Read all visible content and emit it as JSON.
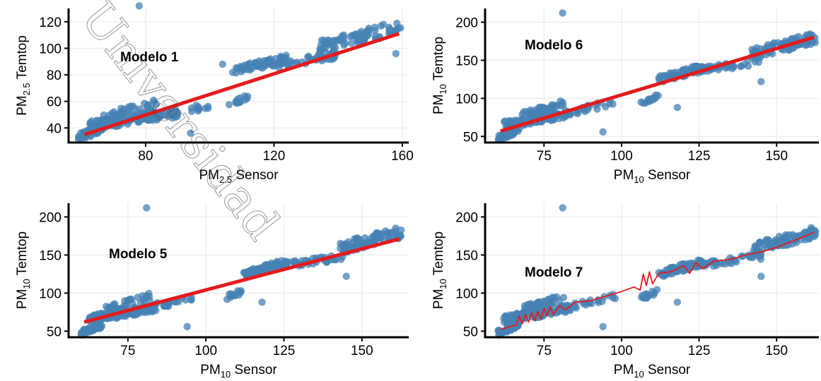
{
  "colors": {
    "points": "#4682B4",
    "fit": "#E41A1C",
    "grid": "#EBEBEB",
    "axis": "#000000"
  },
  "watermark": "Universidad",
  "chart_data": [
    {
      "type": "scatter",
      "panel": "Modelo 1",
      "fit": "linear",
      "xlabel": {
        "base": "PM",
        "sub": "2.5",
        "rest": " Sensor"
      },
      "ylabel": {
        "base": "PM",
        "sub": "2.5",
        "rest": " Temtop"
      },
      "xlim": [
        56,
        162
      ],
      "ylim": [
        29,
        130
      ],
      "xticks": [
        80,
        120,
        160
      ],
      "yticks": [
        40,
        60,
        80,
        100,
        120
      ],
      "fit_line": [
        [
          61,
          35
        ],
        [
          159,
          111
        ]
      ],
      "clusters": [
        {
          "x": [
            59,
            68
          ],
          "y": [
            29,
            46
          ],
          "n": 60
        },
        {
          "x": [
            62,
            90
          ],
          "y": [
            38,
            55
          ],
          "n": 120
        },
        {
          "x": [
            66,
            84
          ],
          "y": [
            44,
            62
          ],
          "n": 40
        },
        {
          "x": [
            86,
            100
          ],
          "y": [
            46,
            60
          ],
          "n": 18
        },
        {
          "x": [
            106,
            112
          ],
          "y": [
            56,
            66
          ],
          "n": 14
        },
        {
          "x": [
            107,
            124
          ],
          "y": [
            80,
            95
          ],
          "n": 60
        },
        {
          "x": [
            120,
            140
          ],
          "y": [
            84,
            98
          ],
          "n": 40
        },
        {
          "x": [
            134,
            160
          ],
          "y": [
            96,
            122
          ],
          "n": 80
        }
      ],
      "outliers": [
        [
          78,
          132
        ],
        [
          94,
          36
        ],
        [
          104,
          88
        ],
        [
          158,
          96
        ]
      ]
    },
    {
      "type": "scatter",
      "panel": "Modelo 6",
      "fit": "linear",
      "xlabel": {
        "base": "PM",
        "sub": "10",
        "rest": " Sensor"
      },
      "ylabel": {
        "base": "PM",
        "sub": "10",
        "rest": " Temtop"
      },
      "xlim": [
        56,
        165
      ],
      "ylim": [
        42,
        218
      ],
      "xticks": [
        75,
        100,
        125,
        150
      ],
      "yticks": [
        50,
        100,
        150,
        200
      ],
      "fit_line": [
        [
          61,
          57
        ],
        [
          162,
          180
        ]
      ],
      "clusters": [
        {
          "x": [
            60,
            67
          ],
          "y": [
            44,
            62
          ],
          "n": 40
        },
        {
          "x": [
            62,
            84
          ],
          "y": [
            60,
            86
          ],
          "n": 120
        },
        {
          "x": [
            68,
            82
          ],
          "y": [
            72,
            100
          ],
          "n": 40
        },
        {
          "x": [
            84,
            98
          ],
          "y": [
            78,
            100
          ],
          "n": 20
        },
        {
          "x": [
            106,
            112
          ],
          "y": [
            90,
            106
          ],
          "n": 14
        },
        {
          "x": [
            112,
            126
          ],
          "y": [
            120,
            145
          ],
          "n": 60
        },
        {
          "x": [
            124,
            145
          ],
          "y": [
            132,
            152
          ],
          "n": 40
        },
        {
          "x": [
            142,
            163
          ],
          "y": [
            150,
            188
          ],
          "n": 80
        }
      ],
      "outliers": [
        [
          81,
          212
        ],
        [
          94,
          56
        ],
        [
          118,
          88
        ],
        [
          145,
          122
        ]
      ]
    },
    {
      "type": "scatter",
      "panel": "Modelo 5",
      "fit": "linear",
      "xlabel": {
        "base": "PM",
        "sub": "10",
        "rest": " Sensor"
      },
      "ylabel": {
        "base": "PM",
        "sub": "10",
        "rest": " Temtop"
      },
      "xlim": [
        56,
        165
      ],
      "ylim": [
        42,
        218
      ],
      "xticks": [
        75,
        100,
        125,
        150
      ],
      "yticks": [
        50,
        100,
        150,
        200
      ],
      "fit_line": [
        [
          61,
          62
        ],
        [
          162,
          171
        ]
      ],
      "clusters": [
        {
          "x": [
            60,
            67
          ],
          "y": [
            44,
            62
          ],
          "n": 40
        },
        {
          "x": [
            62,
            84
          ],
          "y": [
            60,
            86
          ],
          "n": 120
        },
        {
          "x": [
            68,
            82
          ],
          "y": [
            72,
            100
          ],
          "n": 40
        },
        {
          "x": [
            84,
            98
          ],
          "y": [
            78,
            100
          ],
          "n": 20
        },
        {
          "x": [
            106,
            112
          ],
          "y": [
            90,
            106
          ],
          "n": 14
        },
        {
          "x": [
            112,
            126
          ],
          "y": [
            120,
            145
          ],
          "n": 60
        },
        {
          "x": [
            124,
            145
          ],
          "y": [
            132,
            152
          ],
          "n": 40
        },
        {
          "x": [
            142,
            163
          ],
          "y": [
            150,
            188
          ],
          "n": 80
        }
      ],
      "outliers": [
        [
          81,
          212
        ],
        [
          94,
          56
        ],
        [
          118,
          88
        ],
        [
          145,
          122
        ]
      ]
    },
    {
      "type": "scatter",
      "panel": "Modelo 7",
      "fit": "fitted",
      "xlabel": {
        "base": "PM",
        "sub": "10",
        "rest": " Sensor"
      },
      "ylabel": {
        "base": "PM",
        "sub": "10",
        "rest": " Temtop"
      },
      "xlim": [
        56,
        165
      ],
      "ylim": [
        42,
        218
      ],
      "xticks": [
        75,
        100,
        125,
        150
      ],
      "yticks": [
        50,
        100,
        150,
        200
      ],
      "fit_line": [
        [
          61,
          52
        ],
        [
          64,
          56
        ],
        [
          66,
          58
        ],
        [
          67,
          70
        ],
        [
          68,
          60
        ],
        [
          69,
          72
        ],
        [
          70,
          62
        ],
        [
          71,
          74
        ],
        [
          72,
          64
        ],
        [
          73,
          76
        ],
        [
          74,
          66
        ],
        [
          75,
          80
        ],
        [
          76,
          70
        ],
        [
          77,
          82
        ],
        [
          78,
          72
        ],
        [
          80,
          84
        ],
        [
          82,
          78
        ],
        [
          85,
          88
        ],
        [
          90,
          90
        ],
        [
          95,
          96
        ],
        [
          100,
          102
        ],
        [
          104,
          108
        ],
        [
          106,
          104
        ],
        [
          107,
          125
        ],
        [
          108,
          110
        ],
        [
          109,
          128
        ],
        [
          110,
          112
        ],
        [
          112,
          126
        ],
        [
          116,
          128
        ],
        [
          120,
          136
        ],
        [
          122,
          126
        ],
        [
          124,
          140
        ],
        [
          126,
          132
        ],
        [
          130,
          142
        ],
        [
          135,
          144
        ],
        [
          140,
          150
        ],
        [
          145,
          154
        ],
        [
          150,
          160
        ],
        [
          155,
          168
        ],
        [
          160,
          176
        ],
        [
          162,
          180
        ]
      ],
      "clusters": [
        {
          "x": [
            60,
            67
          ],
          "y": [
            44,
            62
          ],
          "n": 40
        },
        {
          "x": [
            62,
            84
          ],
          "y": [
            60,
            86
          ],
          "n": 120
        },
        {
          "x": [
            68,
            82
          ],
          "y": [
            72,
            100
          ],
          "n": 40
        },
        {
          "x": [
            84,
            98
          ],
          "y": [
            78,
            100
          ],
          "n": 20
        },
        {
          "x": [
            106,
            112
          ],
          "y": [
            90,
            106
          ],
          "n": 14
        },
        {
          "x": [
            112,
            126
          ],
          "y": [
            120,
            145
          ],
          "n": 60
        },
        {
          "x": [
            124,
            145
          ],
          "y": [
            132,
            152
          ],
          "n": 40
        },
        {
          "x": [
            142,
            163
          ],
          "y": [
            150,
            188
          ],
          "n": 80
        }
      ],
      "outliers": [
        [
          81,
          212
        ],
        [
          94,
          56
        ],
        [
          118,
          88
        ],
        [
          145,
          122
        ]
      ]
    }
  ]
}
